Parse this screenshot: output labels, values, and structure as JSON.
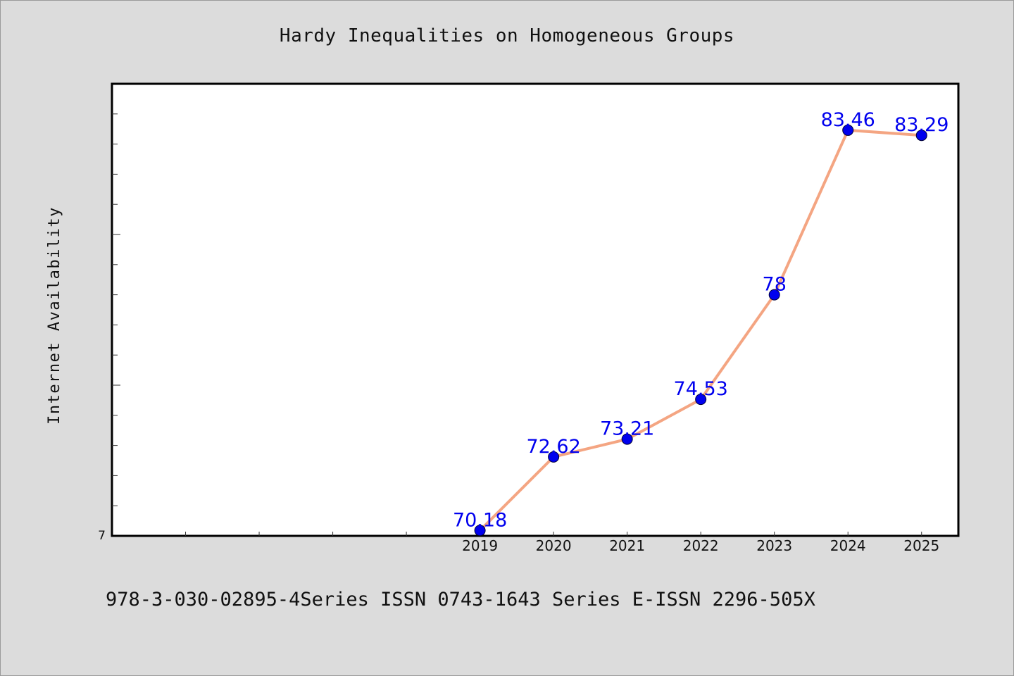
{
  "title": "Hardy Inequalities on Homogeneous Groups",
  "footer": "978-3-030-02895-4Series ISSN 0743-1643 Series E-ISSN 2296-505X",
  "colors": {
    "background": "#dcdcdc",
    "plot_bg": "#ffffff",
    "line": "#f4a582",
    "marker": "#0000ee",
    "label": "#0000ee"
  },
  "chart_data": {
    "type": "line",
    "title": "Hardy Inequalities on Homogeneous Groups",
    "xlabel": "",
    "ylabel": "Internet Availability",
    "x": [
      "2019",
      "2020",
      "2021",
      "2022",
      "2023",
      "2024",
      "2025"
    ],
    "series": [
      {
        "values": [
          70.18,
          72.62,
          73.21,
          74.53,
          78,
          83.46,
          83.29
        ],
        "labels": [
          "70.18",
          "72.62",
          "73.21",
          "74.53",
          "78",
          "83.46",
          "83.29"
        ]
      }
    ],
    "y_tick_label": "7",
    "ylim": [
      70,
      85
    ],
    "x_positions_range": [
      2014,
      2025.5
    ],
    "grid": false,
    "legend": "none"
  }
}
